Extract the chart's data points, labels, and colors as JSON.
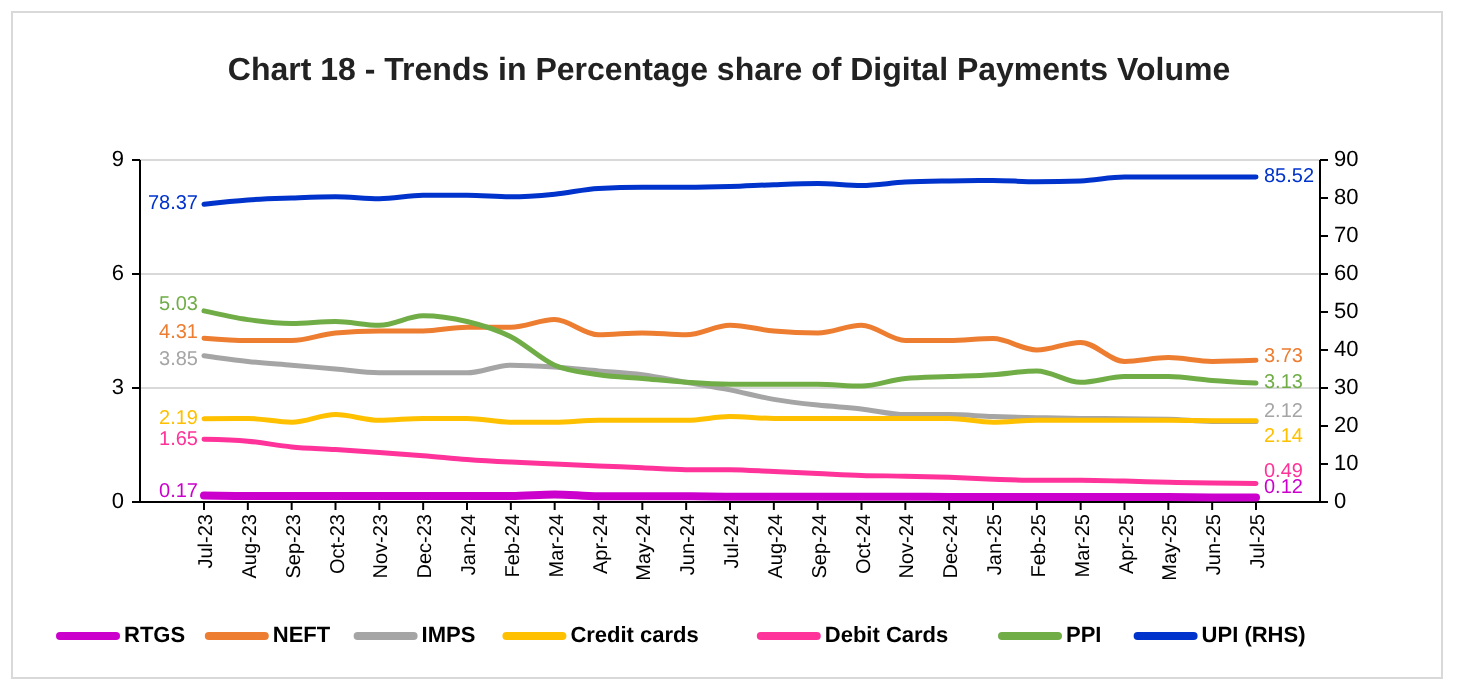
{
  "chart_data": {
    "type": "line",
    "title": "Chart 18 - Trends in Percentage share of Digital Payments Volume",
    "categories": [
      "Jul-23",
      "Aug-23",
      "Sep-23",
      "Oct-23",
      "Nov-23",
      "Dec-23",
      "Jan-24",
      "Feb-24",
      "Mar-24",
      "Apr-24",
      "May-24",
      "Jun-24",
      "Jul-24",
      "Aug-24",
      "Sep-24",
      "Oct-24",
      "Nov-24",
      "Dec-24",
      "Jan-25",
      "Feb-25",
      "Mar-25",
      "Apr-25",
      "May-25",
      "Jun-25",
      "Jul-25"
    ],
    "series": [
      {
        "name": "RTGS",
        "color": "#cc00cc",
        "values": [
          0.17,
          0.16,
          0.16,
          0.16,
          0.16,
          0.16,
          0.16,
          0.16,
          0.2,
          0.15,
          0.15,
          0.15,
          0.14,
          0.14,
          0.14,
          0.14,
          0.14,
          0.13,
          0.13,
          0.13,
          0.13,
          0.13,
          0.13,
          0.12,
          0.12
        ],
        "value_labels": [
          "0.17",
          null,
          null,
          null,
          null,
          null,
          null,
          null,
          null,
          null,
          null,
          null,
          null,
          null,
          null,
          null,
          null,
          null,
          null,
          null,
          null,
          null,
          null,
          null,
          "0.12"
        ]
      },
      {
        "name": "NEFT",
        "color": "#ed7d31",
        "values": [
          4.31,
          4.25,
          4.25,
          4.45,
          4.5,
          4.5,
          4.6,
          4.6,
          4.8,
          4.4,
          4.45,
          4.4,
          4.65,
          4.5,
          4.45,
          4.65,
          4.25,
          4.25,
          4.3,
          4.0,
          4.2,
          3.7,
          3.8,
          3.7,
          3.73
        ],
        "value_labels": [
          "4.31",
          null,
          null,
          null,
          null,
          null,
          null,
          null,
          null,
          null,
          null,
          null,
          null,
          null,
          null,
          null,
          null,
          null,
          null,
          null,
          null,
          null,
          null,
          null,
          "3.73"
        ]
      },
      {
        "name": "IMPS",
        "color": "#a5a5a5",
        "values": [
          3.85,
          3.7,
          3.6,
          3.5,
          3.4,
          3.4,
          3.4,
          3.6,
          3.55,
          3.45,
          3.35,
          3.15,
          2.95,
          2.7,
          2.55,
          2.45,
          2.3,
          2.3,
          2.25,
          2.22,
          2.2,
          2.19,
          2.18,
          2.12,
          2.12
        ],
        "value_labels": [
          "3.85",
          null,
          null,
          null,
          null,
          null,
          null,
          null,
          null,
          null,
          null,
          null,
          null,
          null,
          null,
          null,
          null,
          null,
          null,
          null,
          null,
          null,
          null,
          null,
          "2.12"
        ]
      },
      {
        "name": "Credit cards",
        "color": "#ffc000",
        "values": [
          2.19,
          2.2,
          2.1,
          2.3,
          2.15,
          2.2,
          2.2,
          2.1,
          2.1,
          2.15,
          2.15,
          2.15,
          2.25,
          2.2,
          2.2,
          2.2,
          2.2,
          2.2,
          2.1,
          2.15,
          2.15,
          2.15,
          2.15,
          2.14,
          2.14
        ],
        "value_labels": [
          "2.19",
          null,
          null,
          null,
          null,
          null,
          null,
          null,
          null,
          null,
          null,
          null,
          null,
          null,
          null,
          null,
          null,
          null,
          null,
          null,
          null,
          null,
          null,
          null,
          "2.14"
        ]
      },
      {
        "name": "Debit Cards",
        "color": "#ff3399",
        "values": [
          1.65,
          1.6,
          1.45,
          1.38,
          1.3,
          1.22,
          1.12,
          1.05,
          1.0,
          0.95,
          0.9,
          0.85,
          0.85,
          0.8,
          0.75,
          0.7,
          0.68,
          0.65,
          0.6,
          0.57,
          0.57,
          0.55,
          0.52,
          0.5,
          0.49
        ],
        "value_labels": [
          "1.65",
          null,
          null,
          null,
          null,
          null,
          null,
          null,
          null,
          null,
          null,
          null,
          null,
          null,
          null,
          null,
          null,
          null,
          null,
          null,
          null,
          null,
          null,
          null,
          "0.49"
        ]
      },
      {
        "name": "PPI",
        "color": "#70ad47",
        "values": [
          5.03,
          4.8,
          4.7,
          4.75,
          4.65,
          4.9,
          4.75,
          4.35,
          3.6,
          3.35,
          3.25,
          3.15,
          3.1,
          3.1,
          3.1,
          3.05,
          3.25,
          3.3,
          3.35,
          3.45,
          3.15,
          3.3,
          3.3,
          3.2,
          3.13
        ],
        "value_labels": [
          "5.03",
          null,
          null,
          null,
          null,
          null,
          null,
          null,
          null,
          null,
          null,
          null,
          null,
          null,
          null,
          null,
          null,
          null,
          null,
          null,
          null,
          null,
          null,
          null,
          "3.13"
        ]
      },
      {
        "name": "UPI (RHS)",
        "color": "#0033cc",
        "axis": "y2",
        "values": [
          78.37,
          79.5,
          80,
          80.3,
          79.8,
          80.7,
          80.7,
          80.3,
          81,
          82.5,
          82.8,
          82.8,
          83,
          83.5,
          83.8,
          83.3,
          84.2,
          84.5,
          84.6,
          84.3,
          84.5,
          85.5,
          85.5,
          85.5,
          85.52
        ],
        "value_labels": [
          "78.37",
          null,
          null,
          null,
          null,
          null,
          null,
          null,
          null,
          null,
          null,
          null,
          null,
          null,
          null,
          null,
          null,
          null,
          null,
          null,
          null,
          null,
          null,
          null,
          "85.52"
        ]
      }
    ],
    "ylim": [
      0,
      9
    ],
    "yticks": [
      0,
      3,
      6,
      9
    ],
    "y2lim": [
      0,
      90
    ],
    "y2ticks": [
      0,
      10,
      20,
      30,
      40,
      50,
      60,
      70,
      80,
      90
    ],
    "grid": "y",
    "legend": "bottom",
    "marker": "none",
    "line_style": "solid"
  }
}
